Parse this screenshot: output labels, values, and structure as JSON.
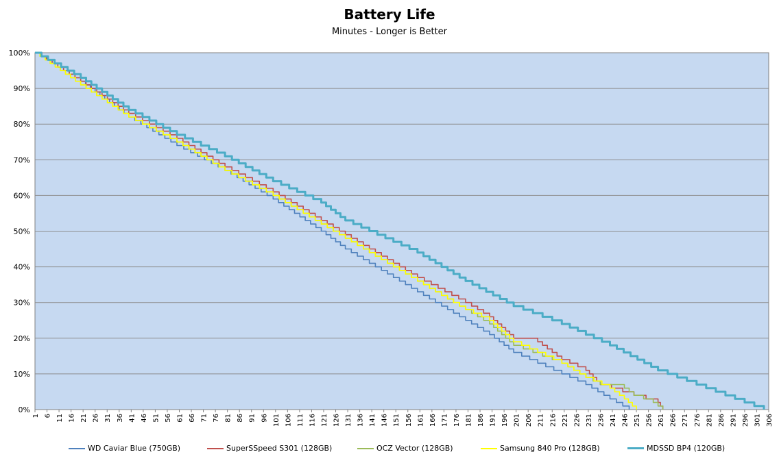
{
  "chart_data": {
    "type": "line",
    "title": "Battery Life",
    "subtitle": "Minutes - Longer is Better",
    "xlabel": "",
    "ylabel": "",
    "x_tick_labels": [
      "1",
      "6",
      "11",
      "16",
      "21",
      "26",
      "31",
      "36",
      "41",
      "46",
      "51",
      "56",
      "61",
      "66",
      "71",
      "76",
      "81",
      "86",
      "91",
      "96",
      "101",
      "106",
      "111",
      "116",
      "121",
      "126",
      "131",
      "136",
      "141",
      "146",
      "151",
      "156",
      "161",
      "166",
      "171",
      "176",
      "181",
      "186",
      "191",
      "196",
      "201",
      "206",
      "211",
      "216",
      "221",
      "226",
      "231",
      "236",
      "241",
      "246",
      "251",
      "256",
      "261",
      "266",
      "271",
      "276",
      "281",
      "286",
      "291",
      "296",
      "301",
      "306"
    ],
    "y_tick_labels": [
      "0%",
      "10%",
      "20%",
      "30%",
      "40%",
      "50%",
      "60%",
      "70%",
      "80%",
      "90%",
      "100%"
    ],
    "xlim": [
      1,
      306
    ],
    "ylim": [
      0,
      100
    ],
    "grid": "horizontal",
    "background_color": "#c6d9f1",
    "legend_position": "bottom",
    "series": [
      {
        "name": "WD Caviar Blue (750GB)",
        "color": "#4f81bd",
        "points": [
          [
            1,
            100
          ],
          [
            20,
            92
          ],
          [
            40,
            82
          ],
          [
            60,
            74
          ],
          [
            80,
            67
          ],
          [
            100,
            59
          ],
          [
            120,
            50
          ],
          [
            130,
            45
          ],
          [
            150,
            37
          ],
          [
            160,
            33
          ],
          [
            180,
            25
          ],
          [
            190,
            21
          ],
          [
            200,
            16
          ],
          [
            220,
            10
          ],
          [
            230,
            7
          ],
          [
            240,
            3
          ],
          [
            248,
            0
          ]
        ]
      },
      {
        "name": "SuperSSpeed S301 (128GB)",
        "color": "#c0504d",
        "points": [
          [
            1,
            100
          ],
          [
            20,
            92
          ],
          [
            40,
            83
          ],
          [
            60,
            76
          ],
          [
            80,
            68
          ],
          [
            100,
            61
          ],
          [
            120,
            53
          ],
          [
            140,
            45
          ],
          [
            160,
            37
          ],
          [
            180,
            30
          ],
          [
            190,
            26
          ],
          [
            200,
            20
          ],
          [
            210,
            19
          ],
          [
            220,
            14
          ],
          [
            230,
            11
          ],
          [
            236,
            7
          ],
          [
            250,
            4
          ],
          [
            260,
            2
          ],
          [
            262,
            0
          ]
        ]
      },
      {
        "name": "OCZ Vector (128GB)",
        "color": "#9bbb59",
        "points": [
          [
            1,
            100
          ],
          [
            20,
            91
          ],
          [
            40,
            82
          ],
          [
            60,
            75
          ],
          [
            80,
            67
          ],
          [
            100,
            60
          ],
          [
            120,
            52
          ],
          [
            140,
            44
          ],
          [
            160,
            36
          ],
          [
            180,
            28
          ],
          [
            190,
            24
          ],
          [
            200,
            18
          ],
          [
            220,
            13
          ],
          [
            230,
            9
          ],
          [
            236,
            7
          ],
          [
            244,
            7
          ],
          [
            250,
            4
          ],
          [
            258,
            2
          ],
          [
            262,
            0
          ]
        ]
      },
      {
        "name": "Samsung 840 Pro (128GB)",
        "color": "#ffff00",
        "points": [
          [
            1,
            100
          ],
          [
            20,
            91
          ],
          [
            40,
            82
          ],
          [
            60,
            75
          ],
          [
            80,
            67
          ],
          [
            100,
            60
          ],
          [
            120,
            52
          ],
          [
            140,
            44
          ],
          [
            160,
            36
          ],
          [
            180,
            28
          ],
          [
            190,
            25
          ],
          [
            200,
            19
          ],
          [
            220,
            13
          ],
          [
            230,
            9
          ],
          [
            240,
            6
          ],
          [
            246,
            3
          ],
          [
            251,
            0
          ]
        ]
      },
      {
        "name": "MDSSD BP4 (120GB)",
        "color": "#4bacc6",
        "points": [
          [
            1,
            100
          ],
          [
            20,
            93
          ],
          [
            40,
            84
          ],
          [
            60,
            77
          ],
          [
            80,
            71
          ],
          [
            100,
            64
          ],
          [
            120,
            58
          ],
          [
            130,
            53
          ],
          [
            140,
            50
          ],
          [
            160,
            44
          ],
          [
            180,
            36
          ],
          [
            200,
            29
          ],
          [
            220,
            24
          ],
          [
            240,
            18
          ],
          [
            260,
            11
          ],
          [
            280,
            6
          ],
          [
            300,
            1
          ],
          [
            304,
            0
          ]
        ]
      }
    ]
  }
}
